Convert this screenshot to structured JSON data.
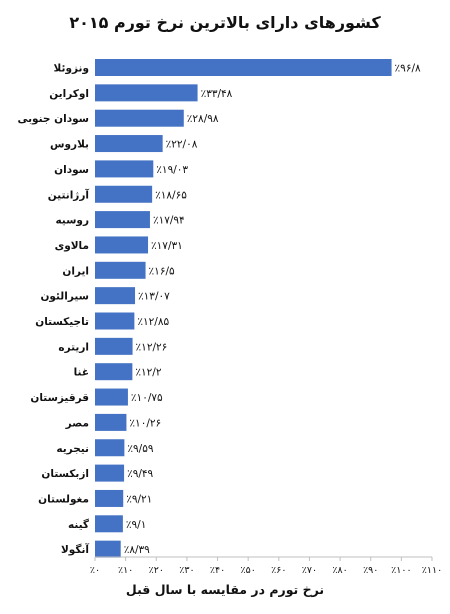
{
  "chart_data": {
    "type": "bar",
    "orientation": "horizontal",
    "title": "کشورهای دارای بالاترین نرخ تورم ۲۰۱۵",
    "xlabel": "نرخ تورم در مقایسه با سال قبل",
    "ylabel": "",
    "xlim": [
      0,
      110
    ],
    "grid": false,
    "legend": "none",
    "bar_color": "#4472c4",
    "categories": [
      "ونزوئلا",
      "اوکراین",
      "سودان جنوبی",
      "بلاروس",
      "سودان",
      "آرژانتین",
      "روسیه",
      "مالاوی",
      "ایران",
      "سیرالئون",
      "تاجیکستان",
      "اریتره",
      "غنا",
      "قرقیزستان",
      "مصر",
      "نیجریه",
      "ازبکستان",
      "مغولستان",
      "گینه",
      "آنگولا"
    ],
    "values": [
      96.8,
      33.48,
      28.98,
      22.08,
      19.03,
      18.65,
      17.94,
      17.31,
      16.5,
      13.07,
      12.85,
      12.26,
      12.2,
      10.75,
      10.26,
      9.59,
      9.49,
      9.21,
      9.1,
      8.39
    ],
    "value_labels": [
      "٪۹۶/۸",
      "٪۳۳/۴۸",
      "٪۲۸/۹۸",
      "٪۲۲/۰۸",
      "٪۱۹/۰۳",
      "٪۱۸/۶۵",
      "٪۱۷/۹۴",
      "٪۱۷/۳۱",
      "٪۱۶/۵",
      "٪۱۳/۰۷",
      "٪۱۲/۸۵",
      "٪۱۲/۲۶",
      "٪۱۲/۲",
      "٪۱۰/۷۵",
      "٪۱۰/۲۶",
      "٪۹/۵۹",
      "٪۹/۴۹",
      "٪۹/۲۱",
      "٪۹/۱",
      "٪۸/۳۹"
    ],
    "ticks": [
      0,
      10,
      20,
      30,
      40,
      50,
      60,
      70,
      80,
      90,
      100,
      110
    ],
    "tick_labels": [
      "٪۰",
      "٪۱۰",
      "٪۲۰",
      "٪۳۰",
      "٪۴۰",
      "٪۵۰",
      "٪۶۰",
      "٪۷۰",
      "٪۸۰",
      "٪۹۰",
      "٪۱۰۰",
      "٪۱۱۰"
    ]
  }
}
